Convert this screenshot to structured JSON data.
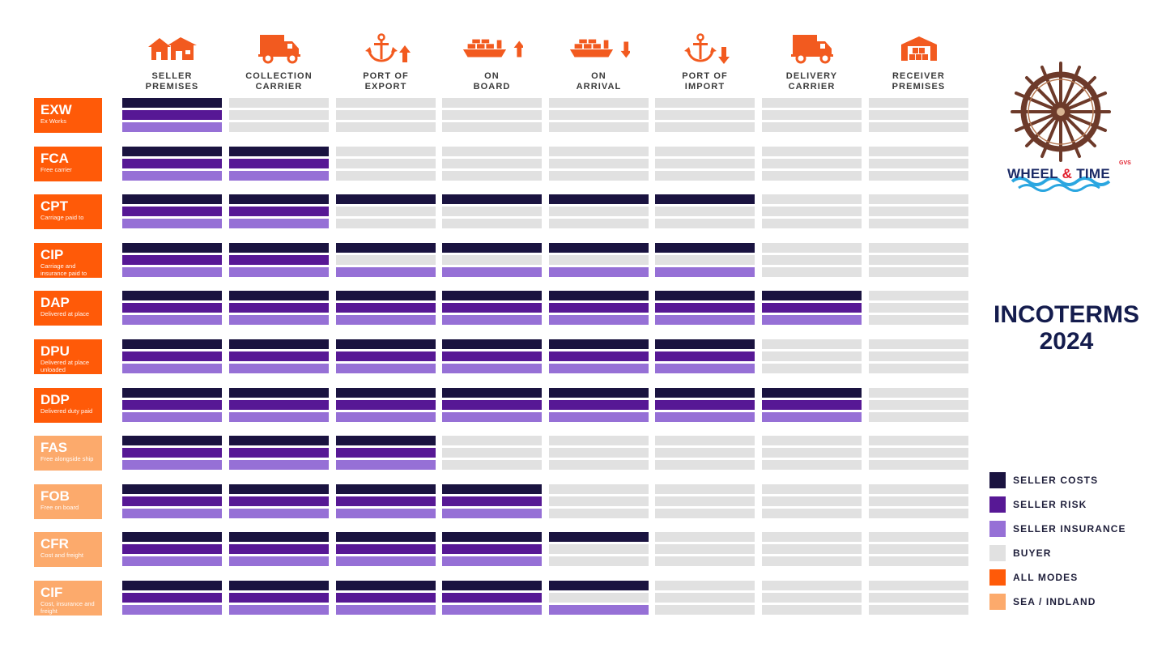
{
  "chart_data": {
    "type": "table",
    "title": "INCOTERMS 2024",
    "columns": [
      {
        "label": "SELLER\nPREMISES",
        "icon": "house-icon"
      },
      {
        "label": "COLLECTION\nCARRIER",
        "icon": "truck-icon"
      },
      {
        "label": "PORT OF\nEXPORT",
        "icon": "anchor-up-icon"
      },
      {
        "label": "ON\nBOARD",
        "icon": "ship-up-icon"
      },
      {
        "label": "ON\nARRIVAL",
        "icon": "ship-down-icon"
      },
      {
        "label": "PORT OF\nIMPORT",
        "icon": "anchor-down-icon"
      },
      {
        "label": "DELIVERY\nCARRIER",
        "icon": "truck-icon"
      },
      {
        "label": "RECEIVER\nPREMISES",
        "icon": "warehouse-icon"
      }
    ],
    "row_layers": [
      "costs",
      "risk",
      "insurance"
    ],
    "rows": [
      {
        "code": "EXW",
        "desc": "Ex Works",
        "group": "all",
        "costs": [
          1,
          0,
          0,
          0,
          0,
          0,
          0,
          0
        ],
        "risk": [
          1,
          0,
          0,
          0,
          0,
          0,
          0,
          0
        ],
        "insurance": [
          1,
          0,
          0,
          0,
          0,
          0,
          0,
          0
        ]
      },
      {
        "code": "FCA",
        "desc": "Free carrier",
        "group": "all",
        "costs": [
          1,
          1,
          0,
          0,
          0,
          0,
          0,
          0
        ],
        "risk": [
          1,
          1,
          0,
          0,
          0,
          0,
          0,
          0
        ],
        "insurance": [
          1,
          1,
          0,
          0,
          0,
          0,
          0,
          0
        ]
      },
      {
        "code": "CPT",
        "desc": "Carriage paid to",
        "group": "all",
        "costs": [
          1,
          1,
          1,
          1,
          1,
          1,
          0,
          0
        ],
        "risk": [
          1,
          1,
          0,
          0,
          0,
          0,
          0,
          0
        ],
        "insurance": [
          1,
          1,
          0,
          0,
          0,
          0,
          0,
          0
        ]
      },
      {
        "code": "CIP",
        "desc": "Carriage and insurance paid to",
        "group": "all",
        "costs": [
          1,
          1,
          1,
          1,
          1,
          1,
          0,
          0
        ],
        "risk": [
          1,
          1,
          0,
          0,
          0,
          0,
          0,
          0
        ],
        "insurance": [
          1,
          1,
          1,
          1,
          1,
          1,
          0,
          0
        ]
      },
      {
        "code": "DAP",
        "desc": "Delivered at place",
        "group": "all",
        "costs": [
          1,
          1,
          1,
          1,
          1,
          1,
          1,
          0
        ],
        "risk": [
          1,
          1,
          1,
          1,
          1,
          1,
          1,
          0
        ],
        "insurance": [
          1,
          1,
          1,
          1,
          1,
          1,
          1,
          0
        ]
      },
      {
        "code": "DPU",
        "desc": "Delivered at place unloaded",
        "group": "all",
        "costs": [
          1,
          1,
          1,
          1,
          1,
          1,
          0,
          0
        ],
        "risk": [
          1,
          1,
          1,
          1,
          1,
          1,
          0,
          0
        ],
        "insurance": [
          1,
          1,
          1,
          1,
          1,
          1,
          0,
          0
        ]
      },
      {
        "code": "DDP",
        "desc": "Delivered duty paid",
        "group": "all",
        "costs": [
          1,
          1,
          1,
          1,
          1,
          1,
          1,
          0
        ],
        "risk": [
          1,
          1,
          1,
          1,
          1,
          1,
          1,
          0
        ],
        "insurance": [
          1,
          1,
          1,
          1,
          1,
          1,
          1,
          0
        ]
      },
      {
        "code": "FAS",
        "desc": "Free alongside ship",
        "group": "sea",
        "costs": [
          1,
          1,
          1,
          0,
          0,
          0,
          0,
          0
        ],
        "risk": [
          1,
          1,
          1,
          0,
          0,
          0,
          0,
          0
        ],
        "insurance": [
          1,
          1,
          1,
          0,
          0,
          0,
          0,
          0
        ]
      },
      {
        "code": "FOB",
        "desc": "Free on board",
        "group": "sea",
        "costs": [
          1,
          1,
          1,
          1,
          0,
          0,
          0,
          0
        ],
        "risk": [
          1,
          1,
          1,
          1,
          0,
          0,
          0,
          0
        ],
        "insurance": [
          1,
          1,
          1,
          1,
          0,
          0,
          0,
          0
        ]
      },
      {
        "code": "CFR",
        "desc": "Cost and freight",
        "group": "sea",
        "costs": [
          1,
          1,
          1,
          1,
          1,
          0,
          0,
          0
        ],
        "risk": [
          1,
          1,
          1,
          1,
          0,
          0,
          0,
          0
        ],
        "insurance": [
          1,
          1,
          1,
          1,
          0,
          0,
          0,
          0
        ]
      },
      {
        "code": "CIF",
        "desc": "Cost, insurance and freight",
        "group": "sea",
        "costs": [
          1,
          1,
          1,
          1,
          1,
          0,
          0,
          0
        ],
        "risk": [
          1,
          1,
          1,
          1,
          0,
          0,
          0,
          0
        ],
        "insurance": [
          1,
          1,
          1,
          1,
          1,
          0,
          0,
          0
        ]
      }
    ],
    "legend": [
      {
        "key": "costs",
        "label": "SELLER COSTS",
        "color": "#1a1340"
      },
      {
        "key": "risk",
        "label": "SELLER RISK",
        "color": "#571895"
      },
      {
        "key": "insurance",
        "label": "SELLER INSURANCE",
        "color": "#9670d6"
      },
      {
        "key": "buyer",
        "label": "BUYER",
        "color": "#e1e1e1"
      },
      {
        "key": "all",
        "label": "ALL MODES",
        "color": "#ff5a08"
      },
      {
        "key": "sea",
        "label": "SEA / INDLAND",
        "color": "#fcaa6c"
      }
    ],
    "legend_position": "bottom-right"
  },
  "logo": {
    "main": "WHEEL",
    "amp": " & ",
    "end": "TIME",
    "sub": "GVS"
  },
  "title_lines": [
    "INCOTERMS",
    "2024"
  ],
  "colors": {
    "costs": "#1a1340",
    "risk": "#571895",
    "insurance": "#9670d6",
    "buyer": "#e1e1e1",
    "all": "#ff5a08",
    "sea": "#fcaa6c",
    "icon": "#f25a1f"
  }
}
